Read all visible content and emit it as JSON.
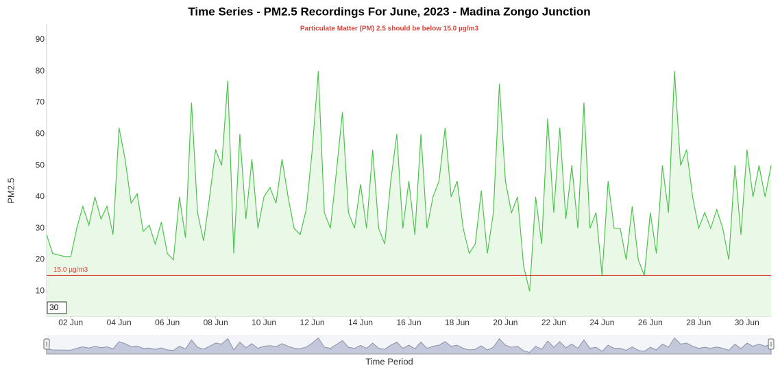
{
  "chart_data": {
    "type": "area",
    "title": "Time Series - PM2.5 Recordings For June, 2023 - Madina Zongo Junction",
    "subtitle": "Particulate Matter (PM) 2.5 should be below 15.0 µg/m3",
    "y_label": "PM2.5",
    "x_label": "Time Period",
    "zoom_input": "30",
    "color": "#4cc44c",
    "fill_color": "#e9f8e7",
    "navigator_color": "#c3c9db",
    "grid": false,
    "threshold": {
      "value": 15,
      "label": "15.0 µg/m3",
      "color": "#d9463b"
    },
    "xlim": [
      1,
      31
    ],
    "ylim": [
      2,
      95
    ],
    "yticks": [
      10,
      20,
      30,
      40,
      50,
      60,
      70,
      80,
      90
    ],
    "xticks": [
      {
        "value": 2,
        "label": "02 Jun"
      },
      {
        "value": 4,
        "label": "04 Jun"
      },
      {
        "value": 6,
        "label": "06 Jun"
      },
      {
        "value": 8,
        "label": "08 Jun"
      },
      {
        "value": 10,
        "label": "10 Jun"
      },
      {
        "value": 12,
        "label": "12 Jun"
      },
      {
        "value": 14,
        "label": "14 Jun"
      },
      {
        "value": 16,
        "label": "16 Jun"
      },
      {
        "value": 18,
        "label": "18 Jun"
      },
      {
        "value": 20,
        "label": "20 Jun"
      },
      {
        "value": 22,
        "label": "22 Jun"
      },
      {
        "value": 24,
        "label": "24 Jun"
      },
      {
        "value": 26,
        "label": "26 Jun"
      },
      {
        "value": 28,
        "label": "28 Jun"
      },
      {
        "value": 30,
        "label": "30 Jun"
      }
    ],
    "x": [
      1,
      1.25,
      1.5,
      1.75,
      2,
      2.25,
      2.5,
      2.75,
      3,
      3.25,
      3.5,
      3.75,
      4,
      4.25,
      4.5,
      4.75,
      5,
      5.25,
      5.5,
      5.75,
      6,
      6.25,
      6.5,
      6.75,
      7,
      7.25,
      7.5,
      7.75,
      8,
      8.25,
      8.5,
      8.75,
      9,
      9.25,
      9.5,
      9.75,
      10,
      10.25,
      10.5,
      10.75,
      11,
      11.25,
      11.5,
      11.75,
      12,
      12.25,
      12.5,
      12.75,
      13,
      13.25,
      13.5,
      13.75,
      14,
      14.25,
      14.5,
      14.75,
      15,
      15.25,
      15.5,
      15.75,
      16,
      16.25,
      16.5,
      16.75,
      17,
      17.25,
      17.5,
      17.75,
      18,
      18.25,
      18.5,
      18.75,
      19,
      19.25,
      19.5,
      19.75,
      20,
      20.25,
      20.5,
      20.75,
      21,
      21.25,
      21.5,
      21.75,
      22,
      22.25,
      22.5,
      22.75,
      23,
      23.25,
      23.5,
      23.75,
      24,
      24.25,
      24.5,
      24.75,
      25,
      25.25,
      25.5,
      25.75,
      26,
      26.25,
      26.5,
      26.75,
      27,
      27.25,
      27.5,
      27.75,
      28,
      28.25,
      28.5,
      28.75,
      29,
      29.25,
      29.5,
      29.75,
      30,
      30.25,
      30.5,
      30.75,
      31
    ],
    "values": [
      28,
      22,
      21.5,
      21,
      21,
      30,
      37,
      31,
      40,
      33,
      37,
      28,
      62,
      52,
      38,
      41,
      29,
      31,
      25,
      32,
      22,
      20,
      40,
      27,
      70,
      35,
      26,
      40,
      55,
      50,
      77,
      22,
      60,
      33,
      52,
      30,
      40,
      43,
      38,
      52,
      40,
      30,
      28,
      36,
      55,
      80,
      35,
      30,
      48,
      67,
      35,
      30,
      44,
      30,
      55,
      30,
      25,
      45,
      60,
      30,
      45,
      28,
      60,
      30,
      40,
      45,
      62,
      40,
      45,
      30,
      22,
      25,
      42,
      22,
      35,
      76,
      45,
      35,
      40,
      18,
      10,
      40,
      25,
      65,
      35,
      62,
      33,
      50,
      30,
      70,
      30,
      35,
      15,
      45,
      30,
      30,
      20,
      37,
      20,
      15,
      35,
      22,
      50,
      35,
      80,
      50,
      55,
      40,
      30,
      35,
      30,
      36,
      30,
      20,
      50,
      28,
      55,
      40,
      50,
      40,
      50
    ]
  }
}
